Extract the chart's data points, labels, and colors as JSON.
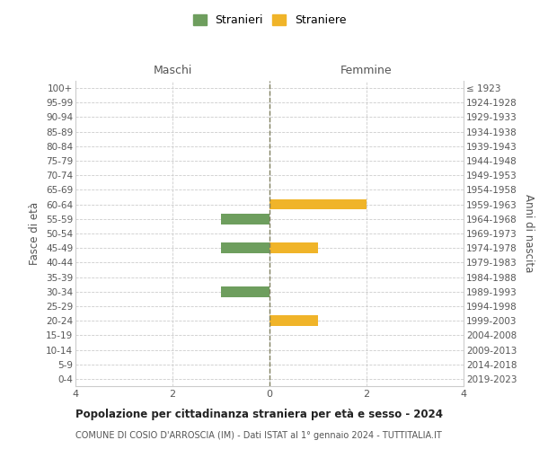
{
  "age_groups": [
    "100+",
    "95-99",
    "90-94",
    "85-89",
    "80-84",
    "75-79",
    "70-74",
    "65-69",
    "60-64",
    "55-59",
    "50-54",
    "45-49",
    "40-44",
    "35-39",
    "30-34",
    "25-29",
    "20-24",
    "15-19",
    "10-14",
    "5-9",
    "0-4"
  ],
  "birth_years": [
    "≤ 1923",
    "1924-1928",
    "1929-1933",
    "1934-1938",
    "1939-1943",
    "1944-1948",
    "1949-1953",
    "1954-1958",
    "1959-1963",
    "1964-1968",
    "1969-1973",
    "1974-1978",
    "1979-1983",
    "1984-1988",
    "1989-1993",
    "1994-1998",
    "1999-2003",
    "2004-2008",
    "2009-2013",
    "2014-2018",
    "2019-2023"
  ],
  "males": [
    0,
    0,
    0,
    0,
    0,
    0,
    0,
    0,
    0,
    -1,
    0,
    -1,
    0,
    0,
    -1,
    0,
    0,
    0,
    0,
    0,
    0
  ],
  "females": [
    0,
    0,
    0,
    0,
    0,
    0,
    0,
    0,
    2,
    0,
    0,
    1,
    0,
    0,
    0,
    0,
    1,
    0,
    0,
    0,
    0
  ],
  "male_color": "#6e9e5e",
  "female_color": "#f0b429",
  "grid_color": "#cccccc",
  "center_line_color": "#808060",
  "title": "Popolazione per cittadinanza straniera per età e sesso - 2024",
  "subtitle": "COMUNE DI COSIO D'ARROSCIA (IM) - Dati ISTAT al 1° gennaio 2024 - TUTTITALIA.IT",
  "xlabel_left": "Maschi",
  "xlabel_right": "Femmine",
  "ylabel_left": "Fasce di età",
  "ylabel_right": "Anni di nascita",
  "legend_male": "Stranieri",
  "legend_female": "Straniere",
  "xlim": [
    -4,
    4
  ],
  "xticks": [
    -4,
    -2,
    0,
    2,
    4
  ],
  "xticklabels": [
    "4",
    "2",
    "0",
    "2",
    "4"
  ],
  "bar_height": 0.72,
  "bg_color": "#ffffff"
}
